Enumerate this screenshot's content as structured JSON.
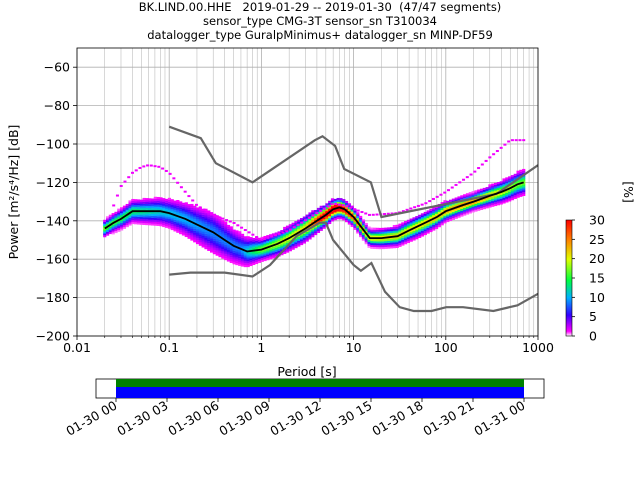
{
  "title_lines": [
    "BK.LIND.00.HHE   2019-01-29 -- 2019-01-30  (47/47 segments)",
    "sensor_type CMG-3T sensor_sn T310034",
    "datalogger_type GuralpMinimus+ datalogger_sn MINP-DF59"
  ],
  "colorbar": {
    "label": "[%]",
    "ticks": [
      "0",
      "5",
      "10",
      "15",
      "20",
      "25",
      "30"
    ],
    "min": 0,
    "max": 30
  },
  "timeline": {
    "ticks": [
      "01-30 00",
      "01-30 03",
      "01-30 06",
      "01-30 09",
      "01-30 12",
      "01-30 15",
      "01-30 18",
      "01-30 21",
      "01-31 00"
    ],
    "bar_colors": {
      "top": "#008000",
      "bottom": "#0000ff"
    },
    "coverage_fraction": 1.0
  },
  "chart_data": {
    "type": "heatmap",
    "title": "BK.LIND.00.HHE   2019-01-29 -- 2019-01-30  (47/47 segments)",
    "xlabel": "Period [s]",
    "ylabel": "Power [m²/s⁴/Hz] [dB]",
    "x_scale": "log",
    "xlim": [
      0.01,
      1000
    ],
    "ylim": [
      -200,
      -50
    ],
    "x_ticks": [
      "0.01",
      "0.1",
      "1",
      "10",
      "100",
      "1000"
    ],
    "y_ticks": [
      "−200",
      "−180",
      "−160",
      "−140",
      "−120",
      "−100",
      "−80",
      "−60"
    ],
    "grid": true,
    "mode_curve": {
      "period": [
        0.02,
        0.025,
        0.03,
        0.04,
        0.06,
        0.08,
        0.1,
        0.15,
        0.2,
        0.3,
        0.4,
        0.5,
        0.7,
        1,
        1.5,
        2,
        3,
        4,
        5,
        6,
        7,
        8,
        10,
        12,
        15,
        20,
        30,
        40,
        60,
        80,
        100,
        150,
        200,
        300,
        400,
        500,
        600,
        700
      ],
      "power": [
        -144,
        -141,
        -139,
        -135,
        -135,
        -135,
        -136,
        -139,
        -142,
        -146,
        -150,
        -153,
        -156,
        -155,
        -152,
        -149,
        -144,
        -140,
        -137,
        -134,
        -133,
        -134,
        -138,
        -143,
        -149,
        -149,
        -148,
        -145,
        -141,
        -138,
        -135,
        -132,
        -130,
        -127,
        -125,
        -123,
        -121,
        -120
      ]
    },
    "nhnm": {
      "period": [
        0.1,
        0.22,
        0.32,
        0.8,
        3.8,
        4.6,
        6.3,
        7.9,
        15.4,
        20,
        354.8,
        1000
      ],
      "power": [
        -91,
        -97,
        -110,
        -120,
        -98,
        -96,
        -101,
        -113,
        -120,
        -138,
        -126,
        -111
      ]
    },
    "nlnm": {
      "period": [
        0.1,
        0.17,
        0.4,
        0.8,
        1.24,
        2.4,
        4.3,
        5,
        6,
        10,
        12,
        15.6,
        21.9,
        31.6,
        45,
        70,
        101,
        154,
        328,
        600,
        1000
      ],
      "power": [
        -168,
        -167,
        -167,
        -169,
        -163,
        -148,
        -141,
        -141,
        -150,
        -163,
        -166,
        -162,
        -177,
        -185,
        -187,
        -187,
        -185,
        -185,
        -187,
        -184,
        -178
      ]
    },
    "pdf_clusters": [
      {
        "period": 0.02,
        "power_range": [
          -147,
          -141
        ],
        "percent": 8
      },
      {
        "period": 0.05,
        "power_range": [
          -140,
          -131
        ],
        "percent": 6
      },
      {
        "period": 0.1,
        "power_range": [
          -145,
          -134
        ],
        "percent": 5
      },
      {
        "period": 0.3,
        "power_range": [
          -157,
          -140
        ],
        "percent": 4
      },
      {
        "period": 0.6,
        "power_range": [
          -161,
          -148
        ],
        "percent": 4
      },
      {
        "period": 1,
        "power_range": [
          -158,
          -150
        ],
        "percent": 8
      },
      {
        "period": 3,
        "power_range": [
          -148,
          -138
        ],
        "percent": 10
      },
      {
        "period": 6,
        "power_range": [
          -138,
          -131
        ],
        "percent": 18
      },
      {
        "period": 15,
        "power_range": [
          -152,
          -146
        ],
        "percent": 10
      },
      {
        "period": 50,
        "power_range": [
          -146,
          -138
        ],
        "percent": 10
      },
      {
        "period": 200,
        "power_range": [
          -134,
          -128
        ],
        "percent": 12
      },
      {
        "period": 600,
        "power_range": [
          -125,
          -116
        ],
        "percent": 8
      }
    ],
    "outlier_curve": {
      "period": [
        0.025,
        0.03,
        0.04,
        0.05,
        0.06,
        0.08,
        0.1,
        0.15,
        0.2,
        0.3,
        0.5,
        1,
        2,
        4,
        6,
        8,
        15,
        30,
        60,
        100,
        200,
        300,
        500,
        700
      ],
      "power": [
        -132,
        -122,
        -115,
        -112,
        -111,
        -112,
        -115,
        -125,
        -132,
        -137,
        -141,
        -150,
        -145,
        -136,
        -131,
        -132,
        -137,
        -136,
        -131,
        -125,
        -115,
        -107,
        -98,
        -98
      ]
    }
  }
}
